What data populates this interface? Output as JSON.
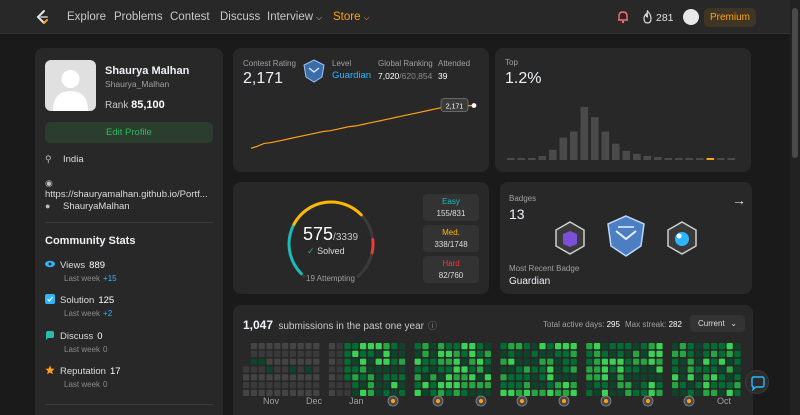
{
  "nav": {
    "links": [
      "Explore",
      "Problems",
      "Contest",
      "Discuss",
      "Interview",
      "Store"
    ],
    "streak": "281",
    "premium": "Premium"
  },
  "profile": {
    "name": "Shaurya Malhan",
    "username": "Shaurya_Malhan",
    "rank_label": "Rank",
    "rank_value": "85,100",
    "edit_label": "Edit Profile",
    "location": "India",
    "website": "https://shauryamalhan.github.io/Portf...",
    "github": "ShauryaMalhan"
  },
  "community": {
    "title": "Community Stats",
    "stats": [
      {
        "label": "Views",
        "value": "889",
        "sub": "Last week",
        "delta": "+15",
        "color": "#2cb6ff"
      },
      {
        "label": "Solution",
        "value": "125",
        "sub": "Last week",
        "delta": "+2",
        "color": "#2cb6ff"
      },
      {
        "label": "Discuss",
        "value": "0",
        "sub": "Last week",
        "delta": "0",
        "color": "#2cbbb0"
      },
      {
        "label": "Reputation",
        "value": "17",
        "sub": "Last week",
        "delta": "0",
        "color": "#ffa116"
      }
    ]
  },
  "contest": {
    "rating_label": "Contest Rating",
    "rating": "2,171",
    "level_label": "Level",
    "level": "Guardian",
    "global_label": "Global Ranking",
    "global_rank": "7,020",
    "global_total": "/620,854",
    "attended_label": "Attended",
    "attended": "39",
    "tooltip": "2,171"
  },
  "rating_chart": {
    "type": "line",
    "values": [
      1560,
      1590,
      1630,
      1640,
      1660,
      1680,
      1700,
      1720,
      1740,
      1760,
      1780,
      1800,
      1810,
      1830,
      1850,
      1870,
      1880,
      1900,
      1920,
      1940,
      1960,
      1980,
      2000,
      2020,
      2040,
      2060,
      2080,
      2100,
      2120,
      2140,
      2150,
      2160,
      2165,
      2168,
      2171
    ],
    "ylim": [
      1450,
      2250
    ]
  },
  "top": {
    "label": "Top",
    "value": "1.2%"
  },
  "top_chart": {
    "type": "bar",
    "values": [
      1,
      1,
      2,
      4,
      10,
      22,
      28,
      52,
      42,
      28,
      16,
      9,
      6,
      4,
      3,
      2,
      2,
      1,
      1.5,
      1,
      1,
      1
    ],
    "highlight_index": 19
  },
  "solved": {
    "count": "575",
    "total": "/3339",
    "solved_label": "Solved",
    "attempting": "19 Attempting",
    "difficulties": [
      {
        "name": "Easy",
        "count": "155/831",
        "color": "#1cbaba",
        "fraction": 0.187
      },
      {
        "name": "Med.",
        "count": "338/1748",
        "color": "#ffb700",
        "fraction": 0.193
      },
      {
        "name": "Hard",
        "count": "82/760",
        "color": "#f63737",
        "fraction": 0.108
      }
    ]
  },
  "badges": {
    "label": "Badges",
    "count": "13",
    "recent_label": "Most Recent Badge",
    "recent": "Guardian"
  },
  "subs": {
    "count": "1,047",
    "text": "submissions in the past one year",
    "active_label": "Total active days:",
    "active": "295",
    "streak_label": "Max streak:",
    "streak": "282",
    "dropdown": "Current",
    "months": [
      "Nov",
      "Dec",
      "Jan",
      "Oct"
    ]
  }
}
